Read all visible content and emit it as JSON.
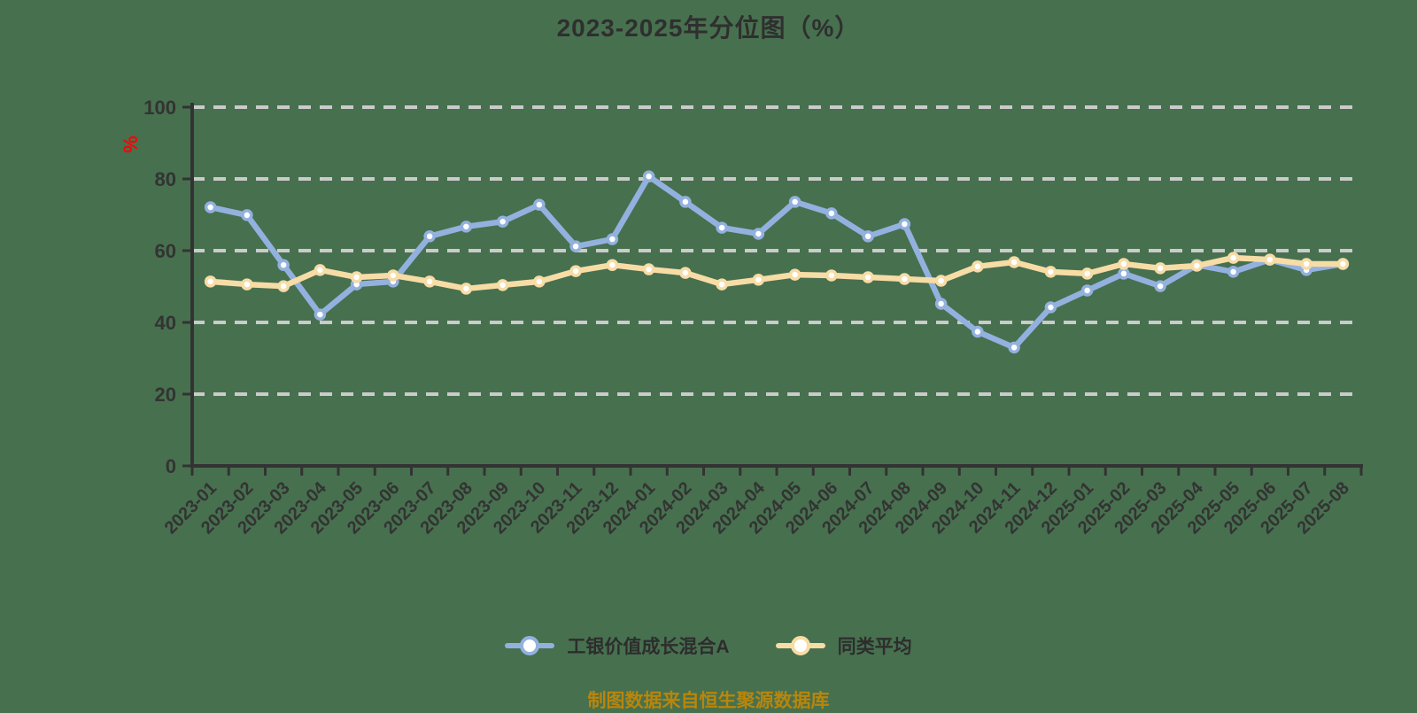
{
  "title": "2023-2025年分位图（%）",
  "y_axis": {
    "name": "%",
    "ticks": [
      0,
      20,
      40,
      60,
      80,
      100
    ]
  },
  "footer": "制图数据来自恒生聚源数据库",
  "colors": {
    "background": "#47704F",
    "axis": "#333333",
    "grid": "#CBCBCB",
    "title": "#2F2F2F",
    "footer": "#B8860B",
    "y_axis_name": "#FF0000",
    "fund_line": "#93B1DE",
    "peer_line": "#F7DCA6",
    "marker_fill": "#FFFFFF"
  },
  "chart_data": {
    "type": "line",
    "title": "2023-2025年分位图（%）",
    "xlabel": "",
    "ylabel": "%",
    "ylim": [
      0,
      100
    ],
    "grid": true,
    "grid_style": "dashed",
    "legend_position": "bottom",
    "categories": [
      "2023-01",
      "2023-02",
      "2023-03",
      "2023-04",
      "2023-05",
      "2023-06",
      "2023-07",
      "2023-08",
      "2023-09",
      "2023-10",
      "2023-11",
      "2023-12",
      "2024-01",
      "2024-02",
      "2024-03",
      "2024-04",
      "2024-05",
      "2024-06",
      "2024-07",
      "2024-08",
      "2024-09",
      "2024-10",
      "2024-11",
      "2024-12",
      "2025-01",
      "2025-02",
      "2025-03",
      "2025-04",
      "2025-05",
      "2025-06",
      "2025-07",
      "2025-08"
    ],
    "series": [
      {
        "name": "工银价值成长混合A",
        "color": "#93B1DE",
        "values": [
          72.1,
          69.9,
          56.0,
          42.2,
          50.6,
          51.4,
          64.0,
          66.7,
          68.1,
          72.8,
          61.2,
          63.2,
          80.7,
          73.6,
          66.4,
          64.7,
          73.6,
          70.4,
          64.0,
          67.4,
          45.2,
          37.4,
          33.0,
          44.2,
          48.9,
          53.6,
          50.1,
          56.0,
          54.1,
          57.5,
          54.6,
          56.3
        ]
      },
      {
        "name": "同类平均",
        "color": "#F7DCA6",
        "values": [
          51.4,
          50.6,
          50.1,
          54.6,
          52.6,
          53.1,
          51.4,
          49.4,
          50.4,
          51.4,
          54.3,
          56.0,
          54.8,
          53.8,
          50.6,
          51.9,
          53.3,
          53.1,
          52.6,
          52.1,
          51.6,
          55.6,
          56.8,
          54.1,
          53.6,
          56.3,
          55.1,
          55.8,
          58.0,
          57.5,
          56.3,
          56.3
        ]
      }
    ]
  }
}
